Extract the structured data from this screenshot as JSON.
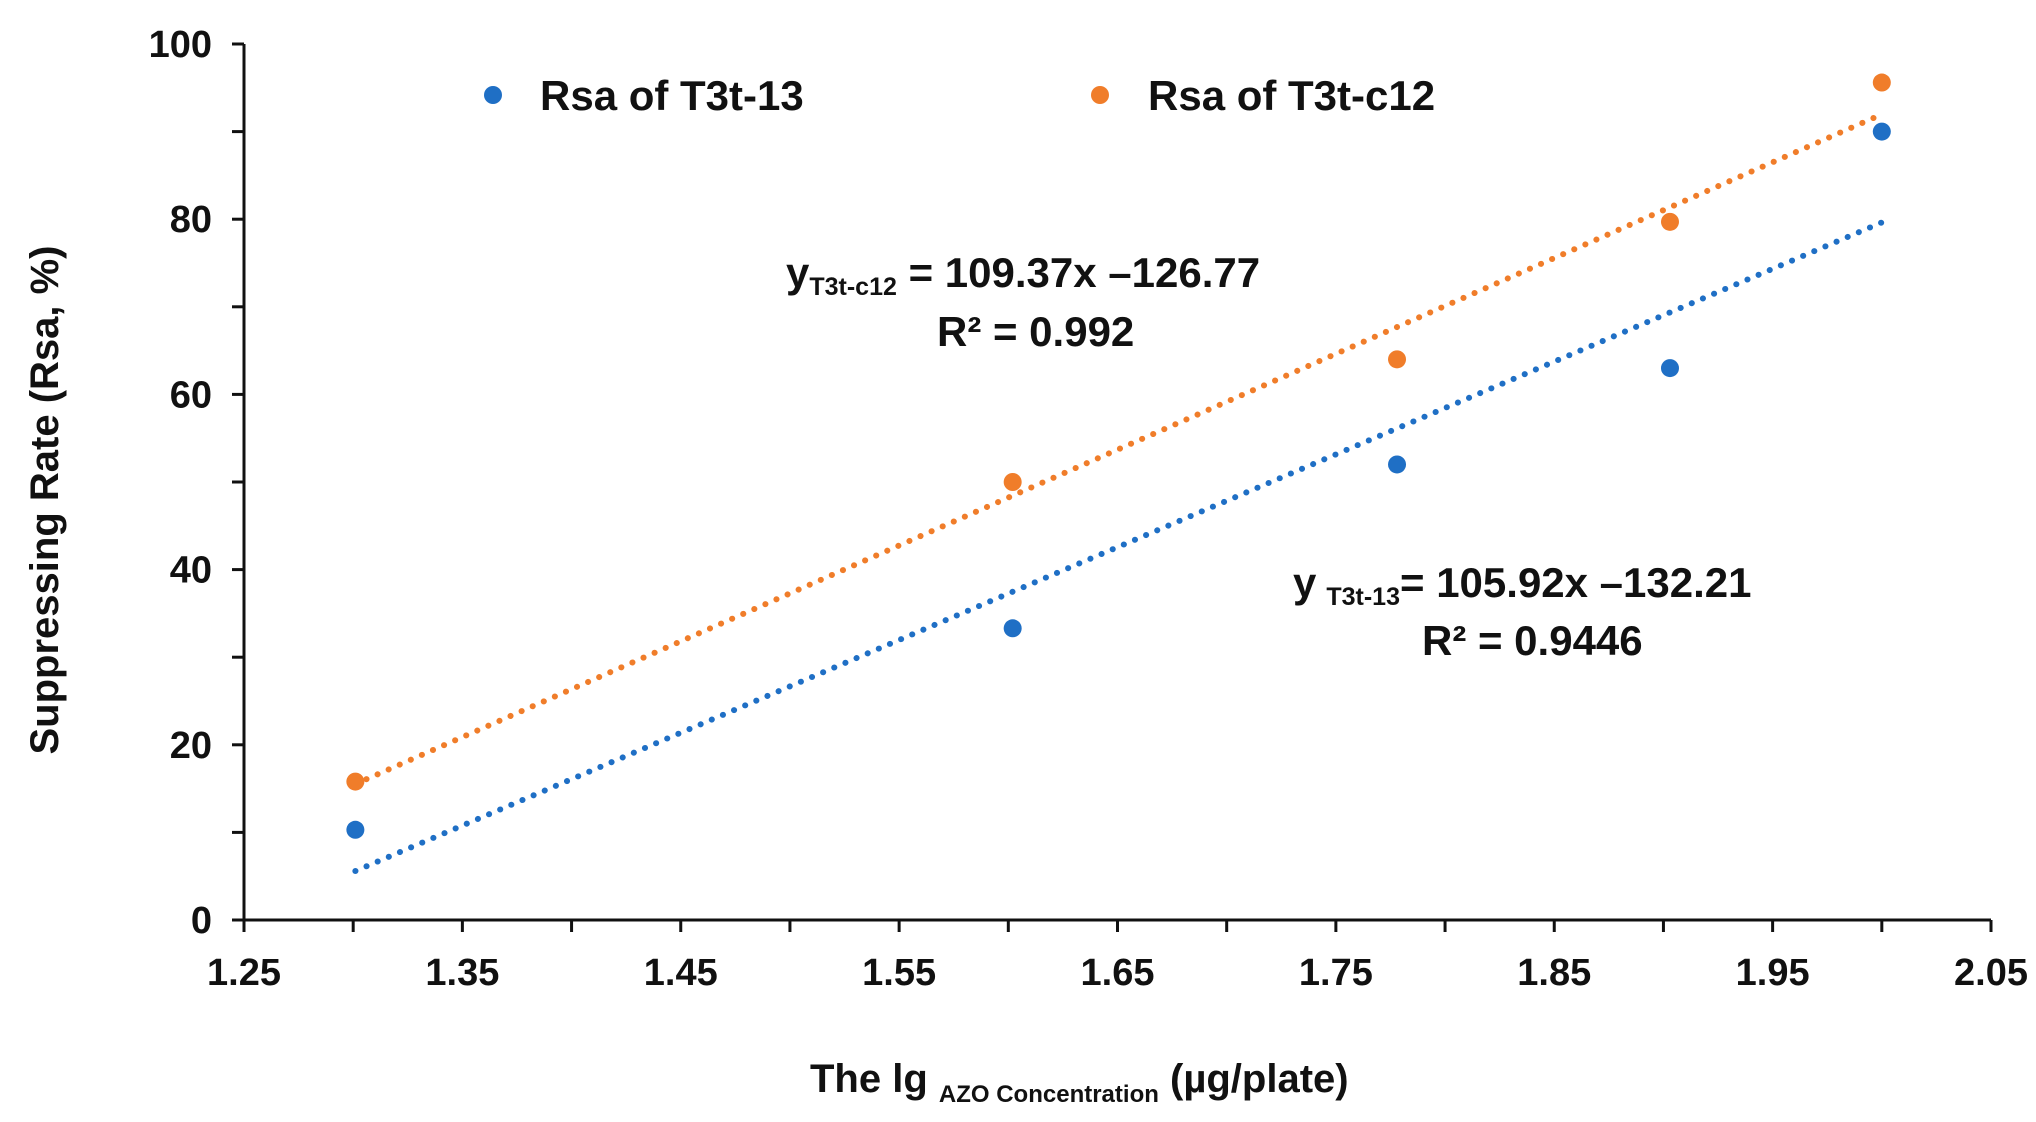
{
  "chart_data": {
    "type": "scatter",
    "title": "",
    "xlabel": {
      "prefix": "The lg ",
      "subscript": "AZO Concentration",
      "suffix": " (µg/plate)"
    },
    "ylabel": "Suppressing Rate (Rsa, %)",
    "xlim": [
      1.25,
      2.05
    ],
    "ylim": [
      0,
      100
    ],
    "xticks": [
      1.25,
      1.35,
      1.45,
      1.55,
      1.65,
      1.75,
      1.85,
      1.95,
      2.05
    ],
    "xtick_labels": [
      "1.25",
      "1.35",
      "1.45",
      "1.55",
      "1.65",
      "1.75",
      "1.85",
      "1.95",
      "2.05"
    ],
    "yticks": [
      0,
      20,
      40,
      60,
      80,
      100
    ],
    "ytick_labels": [
      "0",
      "20",
      "40",
      "60",
      "80",
      "100"
    ],
    "grid": false,
    "legend_position": "top",
    "series": [
      {
        "name": "Rsa of T3t-13",
        "color": "#1f6fc5",
        "x": [
          1.301,
          1.602,
          1.778,
          1.903,
          2.0
        ],
        "y": [
          10.3,
          33.3,
          52.0,
          63.0,
          90.0
        ],
        "trendline": {
          "slope": 105.92,
          "intercept": -132.21,
          "x_range": [
            1.301,
            2.0
          ]
        },
        "equation": {
          "y_symbol": "y",
          "subscript": "T3t-13",
          "rhs": "= 105.92x –132.21",
          "r2": "R² = 0.9446"
        }
      },
      {
        "name": "Rsa of T3t-c12",
        "color": "#f07d2a",
        "x": [
          1.301,
          1.602,
          1.778,
          1.903,
          2.0
        ],
        "y": [
          15.8,
          50.0,
          64.0,
          79.7,
          95.6
        ],
        "trendline": {
          "slope": 109.37,
          "intercept": -126.77,
          "x_range": [
            1.301,
            2.0
          ]
        },
        "equation": {
          "y_symbol": "y",
          "subscript": "T3t-c12",
          "rhs": " = 109.37x –126.77",
          "r2": "R² = 0.992"
        }
      }
    ]
  }
}
